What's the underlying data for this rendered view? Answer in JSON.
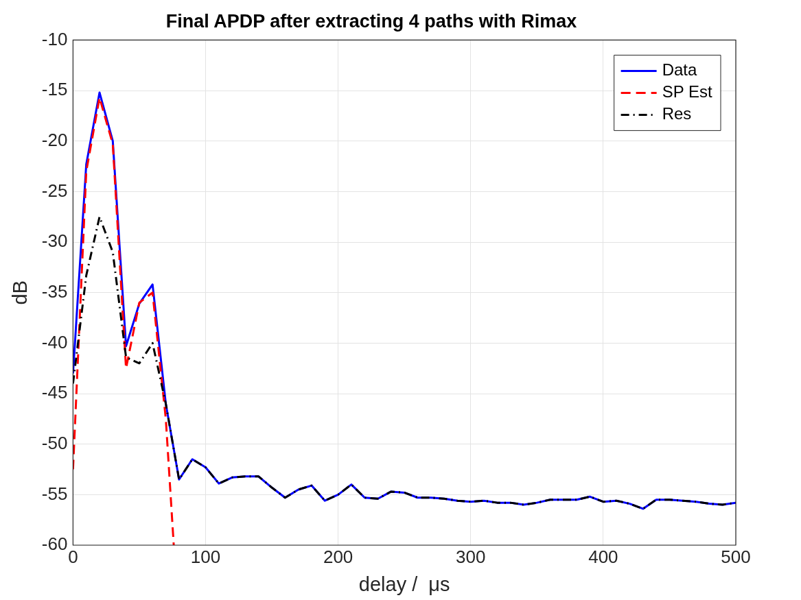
{
  "chart_data": {
    "type": "line",
    "title": "Final APDP after extracting 4 paths with Rimax",
    "xlabel": "delay /  μs",
    "ylabel": "dB",
    "x": [
      0,
      10,
      20,
      30,
      40,
      50,
      60,
      70,
      80,
      90,
      100,
      110,
      120,
      130,
      140,
      150,
      160,
      170,
      180,
      190,
      200,
      210,
      220,
      230,
      240,
      250,
      260,
      270,
      280,
      290,
      300,
      310,
      320,
      330,
      340,
      350,
      360,
      370,
      380,
      390,
      400,
      410,
      420,
      430,
      440,
      450,
      460,
      470,
      480,
      490,
      500
    ],
    "series": [
      {
        "name": "Data",
        "color": "#0000ff",
        "line_style": "solid",
        "values": [
          -43.0,
          -22.3,
          -15.2,
          -20.0,
          -40.3,
          -36.1,
          -34.2,
          -46.0,
          -53.5,
          -51.5,
          -52.3,
          -53.9,
          -53.3,
          -53.2,
          -53.2,
          -54.3,
          -55.3,
          -54.5,
          -54.1,
          -55.6,
          -55.0,
          -54.0,
          -55.3,
          -55.4,
          -54.7,
          -54.8,
          -55.3,
          -55.3,
          -55.4,
          -55.6,
          -55.7,
          -55.6,
          -55.8,
          -55.8,
          -56.0,
          -55.8,
          -55.5,
          -55.5,
          -55.5,
          -55.2,
          -55.7,
          -55.6,
          -55.9,
          -56.4,
          -55.5,
          -55.5,
          -55.6,
          -55.7,
          -55.9,
          -56.0,
          -55.8
        ]
      },
      {
        "name": "SP Est",
        "color": "#ff0000",
        "line_style": "dashed",
        "x": [
          0,
          10,
          20,
          30,
          40,
          50,
          60,
          70,
          76
        ],
        "values": [
          -52.5,
          -23.0,
          -15.7,
          -20.3,
          -42.5,
          -36.0,
          -35.0,
          -47.5,
          -60.0
        ]
      },
      {
        "name": "Res",
        "color": "#000000",
        "line_style": "dashdot",
        "values": [
          -44.0,
          -33.3,
          -27.5,
          -31.0,
          -41.4,
          -42.0,
          -40.0,
          -46.0,
          -53.5,
          -51.5,
          -52.3,
          -53.9,
          -53.3,
          -53.2,
          -53.2,
          -54.3,
          -55.3,
          -54.5,
          -54.1,
          -55.6,
          -55.0,
          -54.0,
          -55.3,
          -55.4,
          -54.7,
          -54.8,
          -55.3,
          -55.3,
          -55.4,
          -55.6,
          -55.7,
          -55.6,
          -55.8,
          -55.8,
          -56.0,
          -55.8,
          -55.5,
          -55.5,
          -55.5,
          -55.2,
          -55.7,
          -55.6,
          -55.9,
          -56.4,
          -55.5,
          -55.5,
          -55.6,
          -55.7,
          -55.9,
          -56.0,
          -55.8
        ]
      }
    ],
    "xlim": [
      0,
      500
    ],
    "xticks": [
      0,
      100,
      200,
      300,
      400,
      500
    ],
    "ylim": [
      -60,
      -10
    ],
    "yticks": [
      -60,
      -55,
      -50,
      -45,
      -40,
      -35,
      -30,
      -25,
      -20,
      -15,
      -10
    ],
    "grid": true,
    "legend": "top right",
    "marker": "none"
  }
}
